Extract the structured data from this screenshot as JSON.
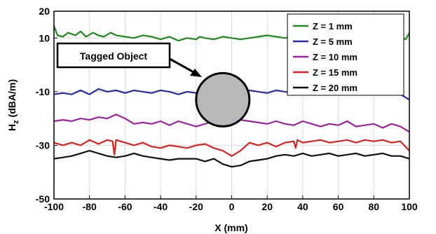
{
  "chart_data": {
    "type": "line",
    "xlabel": "X (mm)",
    "ylabel_main": "H",
    "ylabel_sub": "z",
    "ylabel_unit": " (dBA/m)",
    "xlim": [
      -100,
      100
    ],
    "ylim": [
      -50,
      20
    ],
    "xticks": [
      -100,
      -80,
      -60,
      -40,
      -20,
      0,
      20,
      40,
      60,
      80,
      100
    ],
    "yticks": [
      20,
      10,
      -10,
      -30,
      -50
    ],
    "grid": true,
    "legend_position": "top-right",
    "annotation": {
      "label": "Tagged Object",
      "object_x": -5,
      "object_y": -13
    },
    "series": [
      {
        "name": "Z = 1 mm",
        "color": "#1f8a1f",
        "x": [
          -100,
          -98,
          -95,
          -92,
          -88,
          -85,
          -82,
          -78,
          -75,
          -72,
          -68,
          -65,
          -60,
          -55,
          -50,
          -45,
          -40,
          -35,
          -30,
          -25,
          -20,
          -18,
          -15,
          -10,
          -5,
          0,
          5,
          10,
          15,
          20,
          25,
          30,
          35,
          40,
          45,
          50,
          55,
          60,
          65,
          70,
          75,
          80,
          85,
          90,
          95,
          98,
          100
        ],
        "y": [
          14.5,
          11,
          10.5,
          12,
          11,
          12.5,
          10.5,
          12,
          11,
          10.5,
          12,
          11,
          10.5,
          10,
          11,
          10.5,
          9.5,
          10.5,
          9,
          10,
          9.5,
          10.5,
          10,
          9.5,
          10.5,
          10,
          9.5,
          10,
          10.5,
          11,
          10.5,
          10,
          11,
          10,
          9.5,
          10.5,
          10,
          11,
          10,
          10.5,
          10,
          10.5,
          9.5,
          10,
          10.5,
          9.5,
          12
        ]
      },
      {
        "name": "Z = 5 mm",
        "color": "#2a2aa8",
        "x": [
          -100,
          -95,
          -90,
          -85,
          -80,
          -75,
          -70,
          -65,
          -60,
          -55,
          -50,
          -45,
          -40,
          -35,
          -30,
          -25,
          -20,
          -15,
          -10,
          -5,
          0,
          5,
          10,
          15,
          20,
          25,
          30,
          35,
          40,
          45,
          50,
          55,
          60,
          65,
          70,
          75,
          80,
          85,
          90,
          95,
          100
        ],
        "y": [
          -11,
          -10.5,
          -11,
          -9.5,
          -11,
          -9,
          -10,
          -9.5,
          -10.5,
          -9.5,
          -10,
          -10.5,
          -9.5,
          -10,
          -11,
          -10,
          -10.5,
          -10,
          -9.5,
          -10,
          -10.5,
          -10,
          -9.5,
          -10,
          -10.5,
          -9.5,
          -10,
          -10.5,
          -10,
          -9.5,
          -10,
          -10.5,
          -11,
          -10,
          -10.5,
          -9.5,
          -10,
          -10.5,
          -10,
          -11,
          -13
        ]
      },
      {
        "name": "Z = 10 mm",
        "color": "#a020a0",
        "x": [
          -100,
          -95,
          -90,
          -85,
          -80,
          -75,
          -70,
          -65,
          -60,
          -55,
          -50,
          -45,
          -40,
          -35,
          -30,
          -25,
          -20,
          -15,
          -10,
          -5,
          0,
          5,
          10,
          15,
          20,
          25,
          30,
          35,
          40,
          45,
          50,
          55,
          60,
          65,
          70,
          75,
          80,
          85,
          90,
          95,
          100
        ],
        "y": [
          -21,
          -20.5,
          -21,
          -20,
          -20.5,
          -19.5,
          -20,
          -18.5,
          -20,
          -22,
          -21.5,
          -22,
          -21,
          -22.5,
          -21,
          -22,
          -23,
          -22,
          -21,
          -22,
          -21.5,
          -20.5,
          -21,
          -21.5,
          -22,
          -21,
          -22,
          -22.5,
          -21,
          -22,
          -23,
          -22,
          -22.5,
          -21,
          -23,
          -22.5,
          -22,
          -23.5,
          -22,
          -23,
          -25
        ]
      },
      {
        "name": "Z = 15 mm",
        "color": "#e02020",
        "x": [
          -100,
          -95,
          -90,
          -85,
          -80,
          -75,
          -70,
          -67,
          -66,
          -65,
          -60,
          -55,
          -50,
          -45,
          -40,
          -35,
          -30,
          -25,
          -20,
          -15,
          -10,
          -5,
          0,
          5,
          10,
          15,
          20,
          25,
          30,
          35,
          36,
          37,
          40,
          45,
          50,
          55,
          60,
          65,
          70,
          75,
          80,
          85,
          90,
          95,
          100
        ],
        "y": [
          -29,
          -30,
          -29,
          -30,
          -28,
          -29.5,
          -28,
          -28.5,
          -33.5,
          -28,
          -29,
          -30,
          -29,
          -30.5,
          -31,
          -30,
          -30.5,
          -31,
          -30,
          -29.5,
          -31,
          -32,
          -34,
          -32,
          -29,
          -30,
          -29,
          -30.5,
          -29,
          -28.5,
          -31,
          -28,
          -29,
          -28.5,
          -28,
          -29,
          -28.5,
          -28,
          -29,
          -28,
          -28.5,
          -28,
          -29,
          -28.5,
          -32
        ]
      },
      {
        "name": "Z = 20 mm",
        "color": "#111111",
        "x": [
          -100,
          -95,
          -90,
          -85,
          -80,
          -75,
          -70,
          -65,
          -60,
          -55,
          -50,
          -45,
          -40,
          -35,
          -30,
          -25,
          -20,
          -15,
          -10,
          -5,
          0,
          5,
          10,
          15,
          20,
          25,
          30,
          35,
          40,
          45,
          50,
          55,
          60,
          65,
          70,
          75,
          80,
          85,
          90,
          95,
          100
        ],
        "y": [
          -35,
          -34.5,
          -34,
          -33,
          -32,
          -33,
          -34,
          -34.5,
          -34,
          -33,
          -34,
          -34.5,
          -35,
          -35.5,
          -35,
          -35,
          -35,
          -36,
          -35,
          -37,
          -38,
          -37.5,
          -36,
          -35.5,
          -35,
          -34,
          -33.5,
          -34,
          -33,
          -34,
          -33.5,
          -33,
          -34,
          -33.5,
          -33,
          -34,
          -33.5,
          -33,
          -34,
          -34,
          -35
        ]
      }
    ]
  }
}
